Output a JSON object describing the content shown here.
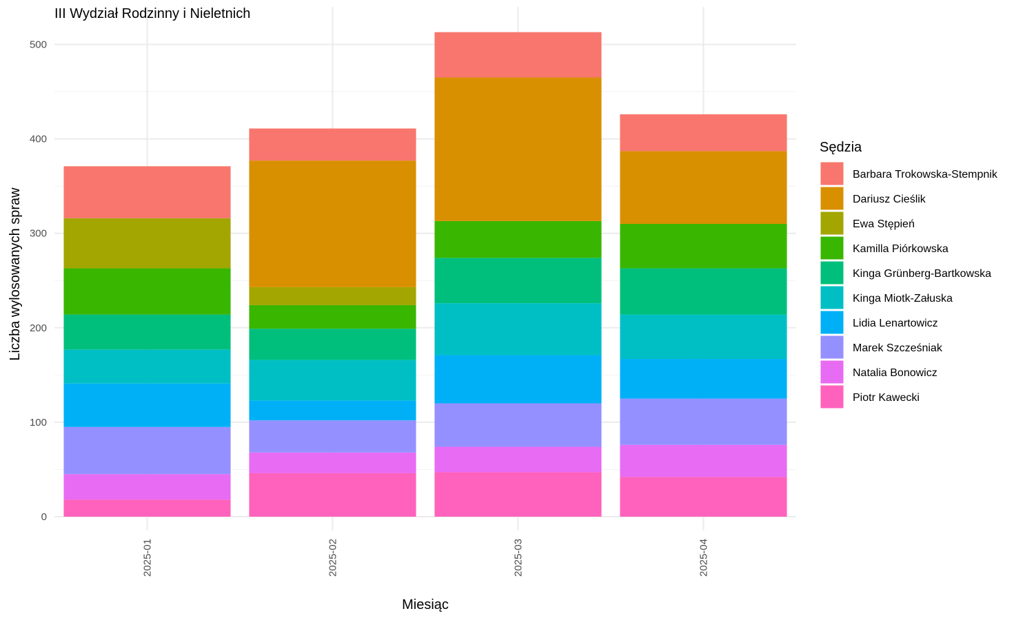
{
  "chart_data": {
    "type": "bar",
    "stacked": true,
    "title": "III Wydział Rodzinny i Nieletnich",
    "xlabel": "Miesiąc",
    "ylabel": "Liczba wylosowanych spraw",
    "categories": [
      "2025-01",
      "2025-02",
      "2025-03",
      "2025-04"
    ],
    "ylim": [
      0,
      520
    ],
    "yticks": [
      0,
      100,
      200,
      300,
      400,
      500
    ],
    "grid": true,
    "legend_title": "Sędzia",
    "legend_position": "right",
    "series": [
      {
        "name": "Barbara Trokowska-Stempnik",
        "color": "#F8766D",
        "values": [
          55,
          34,
          48,
          39
        ]
      },
      {
        "name": "Dariusz Cieślik",
        "color": "#D89000",
        "values": [
          0,
          134,
          152,
          77
        ]
      },
      {
        "name": "Ewa Stępień",
        "color": "#A3A500",
        "values": [
          53,
          19,
          0,
          0
        ]
      },
      {
        "name": "Kamilla Piórkowska",
        "color": "#39B600",
        "values": [
          49,
          25,
          39,
          47
        ]
      },
      {
        "name": "Kinga Grünberg-Bartkowska",
        "color": "#00BF7D",
        "values": [
          37,
          33,
          48,
          49
        ]
      },
      {
        "name": "Kinga Miotk-Załuska",
        "color": "#00BFC4",
        "values": [
          36,
          43,
          55,
          47
        ]
      },
      {
        "name": "Lidia Lenartowicz",
        "color": "#00B0F6",
        "values": [
          46,
          21,
          51,
          42
        ]
      },
      {
        "name": "Marek Szcześniak",
        "color": "#9590FF",
        "values": [
          50,
          34,
          46,
          49
        ]
      },
      {
        "name": "Natalia Bonowicz",
        "color": "#E76BF3",
        "values": [
          27,
          22,
          27,
          34
        ]
      },
      {
        "name": "Piotr Kawecki",
        "color": "#FF62BC",
        "values": [
          18,
          46,
          47,
          42
        ]
      }
    ]
  }
}
